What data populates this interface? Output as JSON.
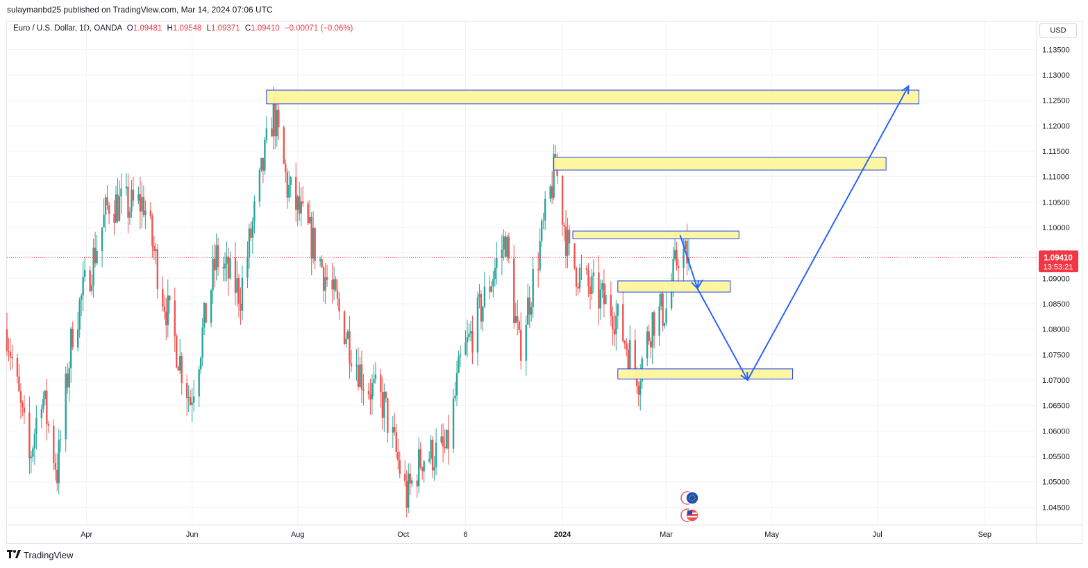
{
  "header": {
    "published": "sulaymanbd25 published on TradingView.com, Mar 14, 2024 07:06 UTC"
  },
  "symbol": {
    "name": "Euro / U.S. Dollar, 1D, OANDA",
    "open_label": "O",
    "open": "1.09481",
    "high_label": "H",
    "high": "1.09548",
    "low_label": "L",
    "low": "1.09371",
    "close_label": "C",
    "close": "1.09410",
    "change": "−0.00071 (−0.06%)"
  },
  "currency_button": "USD",
  "price_badge": {
    "price": "1.09410",
    "countdown": "13:53:21"
  },
  "footer": {
    "brand": "TradingView",
    "logo_icon": "tradingview-logo-icon"
  },
  "event_icons": [
    "euro-flag-icon",
    "us-flag-icon"
  ],
  "colors": {
    "up": "#26a69a",
    "down": "#ef5350",
    "zone_fill": "#fff59d",
    "zone_border": "#1a3cff",
    "arrow": "#2962ff",
    "badge": "#f23645"
  },
  "chart_data": {
    "type": "candlestick",
    "y_ticks": [
      "1.13500",
      "1.13000",
      "1.12500",
      "1.12000",
      "1.11500",
      "1.11000",
      "1.10500",
      "1.10000",
      "1.09500",
      "1.09000",
      "1.08500",
      "1.08000",
      "1.07500",
      "1.07000",
      "1.06500",
      "1.06000",
      "1.05500",
      "1.05000",
      "1.04500"
    ],
    "x_ticks": [
      {
        "label": "Apr",
        "date": "2023-04-01"
      },
      {
        "label": "Jun",
        "date": "2023-06-01"
      },
      {
        "label": "Aug",
        "date": "2023-08-01"
      },
      {
        "label": "Oct",
        "date": "2023-10-01"
      },
      {
        "label": "6",
        "date": "2023-11-06"
      },
      {
        "label": "2024",
        "date": "2024-01-01"
      },
      {
        "label": "Mar",
        "date": "2024-03-01"
      },
      {
        "label": "May",
        "date": "2024-05-01"
      },
      {
        "label": "Jul",
        "date": "2024-07-01"
      },
      {
        "label": "Sep",
        "date": "2024-09-01"
      }
    ],
    "x_range": [
      "2023-02-14",
      "2024-10-01"
    ],
    "y_range": [
      1.0415,
      1.1405
    ],
    "last_price": 1.0941,
    "key_points": [
      {
        "date": "2023-02-14",
        "close": 1.08
      },
      {
        "date": "2023-02-27",
        "close": 1.054
      },
      {
        "date": "2023-03-06",
        "close": 1.068
      },
      {
        "date": "2023-03-15",
        "close": 1.052
      },
      {
        "date": "2023-03-24",
        "close": 1.08
      },
      {
        "date": "2023-04-05",
        "close": 1.094
      },
      {
        "date": "2023-04-14",
        "close": 1.105
      },
      {
        "date": "2023-04-26",
        "close": 1.104
      },
      {
        "date": "2023-05-04",
        "close": 1.105
      },
      {
        "date": "2023-05-15",
        "close": 1.087
      },
      {
        "date": "2023-05-31",
        "close": 1.066
      },
      {
        "date": "2023-06-15",
        "close": 1.094
      },
      {
        "date": "2023-06-29",
        "close": 1.087
      },
      {
        "date": "2023-07-12",
        "close": 1.112
      },
      {
        "date": "2023-07-18",
        "close": 1.123
      },
      {
        "date": "2023-07-26",
        "close": 1.108
      },
      {
        "date": "2023-08-11",
        "close": 1.096
      },
      {
        "date": "2023-08-23",
        "close": 1.085
      },
      {
        "date": "2023-09-08",
        "close": 1.07
      },
      {
        "date": "2023-09-20",
        "close": 1.065
      },
      {
        "date": "2023-10-03",
        "close": 1.047
      },
      {
        "date": "2023-10-12",
        "close": 1.055
      },
      {
        "date": "2023-10-26",
        "close": 1.056
      },
      {
        "date": "2023-11-03",
        "close": 1.073
      },
      {
        "date": "2023-11-16",
        "close": 1.085
      },
      {
        "date": "2023-11-29",
        "close": 1.098
      },
      {
        "date": "2023-12-07",
        "close": 1.076
      },
      {
        "date": "2023-12-20",
        "close": 1.098
      },
      {
        "date": "2023-12-28",
        "close": 1.112
      },
      {
        "date": "2024-01-05",
        "close": 1.094
      },
      {
        "date": "2024-01-16",
        "close": 1.088
      },
      {
        "date": "2024-01-30",
        "close": 1.084
      },
      {
        "date": "2024-02-14",
        "close": 1.071
      },
      {
        "date": "2024-02-22",
        "close": 1.082
      },
      {
        "date": "2024-03-01",
        "close": 1.084
      },
      {
        "date": "2024-03-08",
        "close": 1.095
      },
      {
        "date": "2024-03-14",
        "close": 1.0941
      }
    ],
    "zones": [
      {
        "start": "2023-07-14",
        "end": "2024-07-25",
        "top": 1.127,
        "bottom": 1.1243
      },
      {
        "start": "2023-12-27",
        "end": "2024-07-06",
        "top": 1.1138,
        "bottom": 1.1113
      },
      {
        "start": "2024-01-07",
        "end": "2024-04-12",
        "top": 1.0993,
        "bottom": 1.0978
      },
      {
        "start": "2024-02-02",
        "end": "2024-04-07",
        "top": 1.0895,
        "bottom": 1.0873
      },
      {
        "start": "2024-02-02",
        "end": "2024-05-13",
        "top": 1.0722,
        "bottom": 1.0702
      }
    ],
    "projection_path": [
      {
        "date": "2024-03-09",
        "price": 1.0985
      },
      {
        "date": "2024-03-19",
        "price": 1.088
      },
      {
        "date": "2024-04-17",
        "price": 1.07
      },
      {
        "date": "2024-07-19",
        "price": 1.1278
      }
    ],
    "projection_arrow_side": {
      "from": {
        "date": "2024-03-19",
        "price": 1.088
      },
      "to": {
        "date": "2024-03-22",
        "price": 1.0897
      }
    }
  }
}
